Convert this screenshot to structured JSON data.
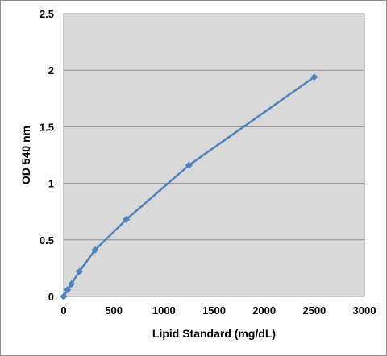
{
  "chart_data": {
    "type": "scatter",
    "title": "",
    "xlabel": "Lipid Standard (mg/dL)",
    "ylabel": "OD 540 nm",
    "xlim": [
      0,
      3000
    ],
    "ylim": [
      0,
      2.5
    ],
    "x_ticks": [
      "0",
      "500",
      "1000",
      "1500",
      "2000",
      "2500",
      "3000"
    ],
    "y_ticks": [
      "0",
      "0.5",
      "1",
      "1.5",
      "2",
      "2.5"
    ],
    "grid": "horizontal",
    "legend": "none",
    "colors": {
      "plot_bg": "#d9d9d9",
      "grid": "#8c8c8c",
      "series": "#4f81bd",
      "frame": "#8c8c8c"
    },
    "series": [
      {
        "marker": "diamond",
        "line": true,
        "x": [
          0,
          39,
          78,
          156,
          312,
          625,
          1250,
          2500
        ],
        "y": [
          0.0,
          0.06,
          0.11,
          0.22,
          0.41,
          0.68,
          1.16,
          1.94
        ]
      }
    ]
  }
}
